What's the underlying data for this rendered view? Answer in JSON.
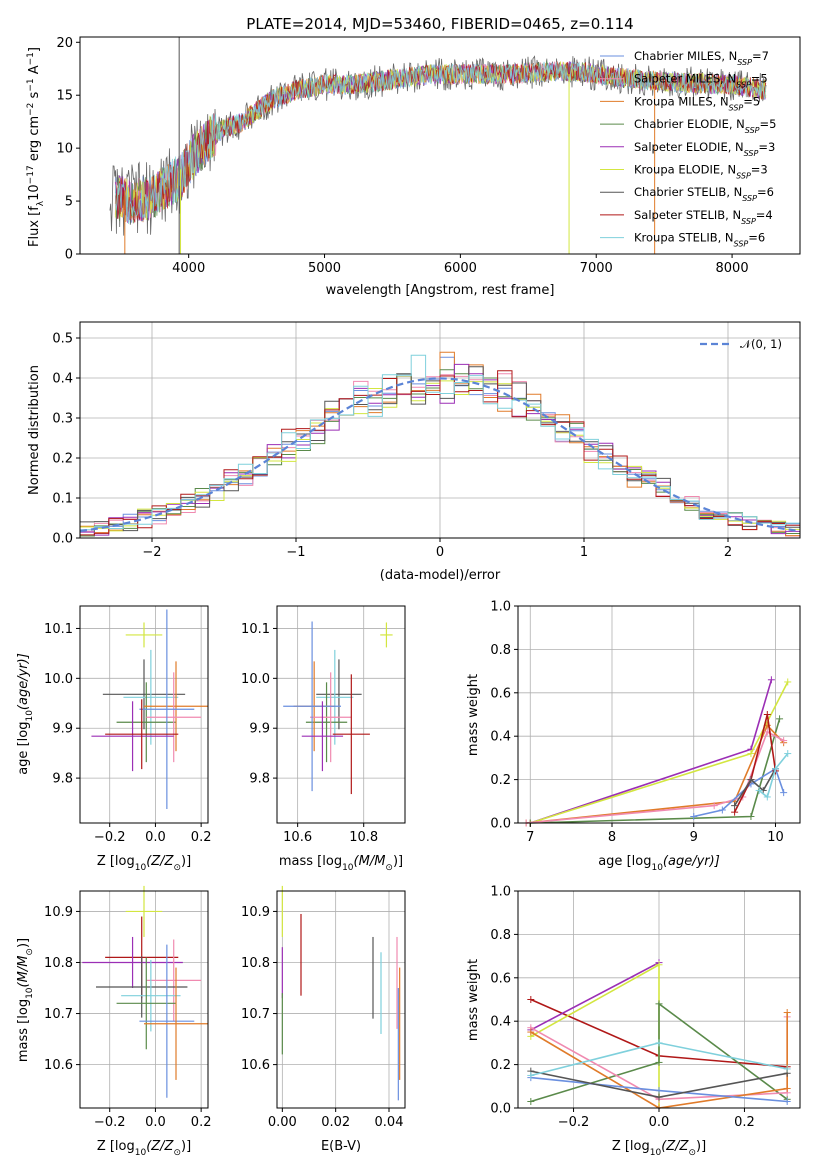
{
  "colors": {
    "Chabrier MILES": "#6a8fdf",
    "Salpeter MILES": "#f08ab0",
    "Kroupa MILES": "#e07b2a",
    "Chabrier ELODIE": "#5a8a4a",
    "Salpeter ELODIE": "#9b2fb5",
    "Kroupa ELODIE": "#d3e640",
    "Chabrier STELIB": "#555555",
    "Salpeter STELIB": "#b01818",
    "Kroupa STELIB": "#7fd0dc"
  },
  "chart_data": [
    {
      "id": "spectrum",
      "type": "line",
      "title": "PLATE=2014, MJD=53460, FIBERID=0465, z=0.114",
      "xlabel": "wavelength [Angstrom, rest frame]",
      "ylabel": "Flux [f$_\\lambda$10$^{-17}$ erg cm$^{-2}$ s$^{-1}$ A$^{-1}$]",
      "ylabel_main": "Flux [f",
      "ylabel_sub": "λ",
      "ylabel_mid": "10",
      "ylabel_sup1": "−17",
      "ylabel_mid2": " erg cm",
      "ylabel_sup2": "−2",
      "ylabel_mid3": " s",
      "ylabel_sup3": "−1",
      "ylabel_mid4": " A",
      "ylabel_sup4": "−1",
      "ylabel_end": "]",
      "xlim": [
        3200,
        8500
      ],
      "ylim": [
        0,
        20.5
      ],
      "xticks": [
        "4000",
        "5000",
        "6000",
        "7000",
        "8000"
      ],
      "xtick_values": [
        4000,
        5000,
        6000,
        7000,
        8000
      ],
      "yticks": [
        "0",
        "5",
        "10",
        "15",
        "20"
      ],
      "ytick_values": [
        0,
        5,
        10,
        15,
        20
      ],
      "legend_position": "right",
      "legend": [
        {
          "name": "Chabrier MILES",
          "nssp": "7"
        },
        {
          "name": "Salpeter MILES",
          "nssp": "5"
        },
        {
          "name": "Kroupa MILES",
          "nssp": "5"
        },
        {
          "name": "Chabrier ELODIE",
          "nssp": "5"
        },
        {
          "name": "Salpeter ELODIE",
          "nssp": "3"
        },
        {
          "name": "Kroupa ELODIE",
          "nssp": "3"
        },
        {
          "name": "Chabrier STELIB",
          "nssp": "6"
        },
        {
          "name": "Salpeter STELIB",
          "nssp": "4"
        },
        {
          "name": "Kroupa STELIB",
          "nssp": "6"
        }
      ],
      "nssp_label": "N",
      "nssp_sub": "SSP",
      "continuum": {
        "x": [
          3420,
          3550,
          3700,
          3850,
          3950,
          4050,
          4200,
          4400,
          4600,
          4800,
          5000,
          5200,
          5500,
          5800,
          6100,
          6400,
          6700,
          6900,
          7100,
          7300,
          7600,
          8000,
          8250
        ],
        "y": [
          5.5,
          5.0,
          5.2,
          6.5,
          7.5,
          9.5,
          11.5,
          12.5,
          14.5,
          15.5,
          16.0,
          16.0,
          16.5,
          17.0,
          17.0,
          17.0,
          17.3,
          17.2,
          16.8,
          16.5,
          16.2,
          16.0,
          15.5
        ]
      },
      "spikes": [
        {
          "x": 3930,
          "y0": 0,
          "y1": 20.5,
          "series": "Chabrier STELIB"
        },
        {
          "x": 3530,
          "y0": 0,
          "y1": 6,
          "series": "Kroupa MILES"
        },
        {
          "x": 3940,
          "y0": 0,
          "y1": 8,
          "series": "Kroupa ELODIE"
        },
        {
          "x": 6800,
          "y0": 0,
          "y1": 17,
          "series": "Kroupa ELODIE"
        },
        {
          "x": 7430,
          "y0": 0,
          "y1": 17,
          "series": "Kroupa MILES"
        }
      ]
    },
    {
      "id": "residuals",
      "type": "line",
      "xlabel": "(data-model)/error",
      "ylabel": "Normed distribution",
      "xlim": [
        -2.5,
        2.5
      ],
      "ylim": [
        0,
        0.54
      ],
      "xticks": [
        "−2",
        "−1",
        "0",
        "1",
        "2"
      ],
      "xtick_values": [
        -2,
        -1,
        0,
        1,
        2
      ],
      "yticks": [
        "0.0",
        "0.1",
        "0.2",
        "0.3",
        "0.4",
        "0.5"
      ],
      "ytick_values": [
        0,
        0.1,
        0.2,
        0.3,
        0.4,
        0.5
      ],
      "legend_label": "𝒩(0, 1)",
      "legend_position": "upper right",
      "gaussian": {
        "mu": 0,
        "sigma": 1,
        "style": "dashed"
      },
      "histogram_bins": 50,
      "histogram_peak": 0.41
    },
    {
      "id": "age_vs_Z",
      "type": "scatter",
      "xlabel_main": "Z [log",
      "xlabel_sub": "10",
      "xlabel_end": "(Z/Z",
      "xlabel_sun": "⊙",
      "xlabel_close": ")]",
      "ylabel_main": "age  [log",
      "ylabel_sub": "10",
      "ylabel_end": "(age/yr)]",
      "xlim": [
        -0.33,
        0.23
      ],
      "ylim": [
        9.71,
        10.145
      ],
      "xticks": [
        "−0.2",
        "0.0",
        "0.2"
      ],
      "xtick_values": [
        -0.2,
        0.0,
        0.2
      ],
      "yticks": [
        "9.8",
        "9.9",
        "10.0",
        "10.1"
      ],
      "ytick_values": [
        9.8,
        9.9,
        10.0,
        10.1
      ],
      "points": [
        {
          "series": "Kroupa ELODIE",
          "x": -0.05,
          "y": 10.087,
          "xerr": 0.08,
          "yerr": 0.025
        },
        {
          "series": "Chabrier STELIB",
          "x": -0.05,
          "y": 9.968,
          "xerr": 0.18,
          "yerr": 0.07
        },
        {
          "series": "Kroupa STELIB",
          "x": -0.02,
          "y": 9.962,
          "xerr": 0.12,
          "yerr": 0.095
        },
        {
          "series": "Chabrier ELODIE",
          "x": -0.04,
          "y": 9.912,
          "xerr": 0.13,
          "yerr": 0.08
        },
        {
          "series": "Kroupa MILES",
          "x": 0.09,
          "y": 9.944,
          "xerr": 0.14,
          "yerr": 0.09
        },
        {
          "series": "Salpeter MILES",
          "x": 0.08,
          "y": 9.922,
          "xerr": 0.12,
          "yerr": 0.09
        },
        {
          "series": "Chabrier MILES",
          "x": 0.05,
          "y": 9.938,
          "xerr": 0.12,
          "yerr": 0.2
        },
        {
          "series": "Salpeter ELODIE",
          "x": -0.1,
          "y": 9.884,
          "xerr": 0.18,
          "yerr": 0.07
        },
        {
          "series": "Salpeter STELIB",
          "x": -0.06,
          "y": 9.888,
          "xerr": 0.16,
          "yerr": 0.07
        }
      ]
    },
    {
      "id": "age_vs_mass",
      "type": "scatter",
      "xlabel_main": "mass [log",
      "xlabel_sub": "10",
      "xlabel_end": "(M/M",
      "xlabel_sun": "⊙",
      "xlabel_close": ")]",
      "xlim": [
        1.65,
        1.96
      ],
      "ylim": [
        9.71,
        10.145
      ],
      "xticks": [
        "10.6",
        "10.8"
      ],
      "xtick_values": [
        1.7,
        1.86
      ],
      "yticks": [
        "9.8",
        "9.9",
        "10.0",
        "10.1"
      ],
      "ytick_values": [
        9.8,
        9.9,
        10.0,
        10.1
      ],
      "points": [
        {
          "series": "Kroupa ELODIE",
          "x": 1.915,
          "y": 10.087,
          "xerr": 0.015,
          "yerr": 0.025
        },
        {
          "series": "Chabrier STELIB",
          "x": 1.8,
          "y": 9.968,
          "xerr": 0.055,
          "yerr": 0.07
        },
        {
          "series": "Kroupa STELIB",
          "x": 1.79,
          "y": 9.962,
          "xerr": 0.045,
          "yerr": 0.095
        },
        {
          "series": "Chabrier ELODIE",
          "x": 1.77,
          "y": 9.912,
          "xerr": 0.05,
          "yerr": 0.08
        },
        {
          "series": "Kroupa MILES",
          "x": 1.74,
          "y": 9.944,
          "xerr": 0.05,
          "yerr": 0.09
        },
        {
          "series": "Salpeter MILES",
          "x": 1.78,
          "y": 9.922,
          "xerr": 0.05,
          "yerr": 0.09
        },
        {
          "series": "Chabrier MILES",
          "x": 1.735,
          "y": 9.944,
          "xerr": 0.07,
          "yerr": 0.17
        },
        {
          "series": "Salpeter ELODIE",
          "x": 1.76,
          "y": 9.884,
          "xerr": 0.05,
          "yerr": 0.07
        },
        {
          "series": "Salpeter STELIB",
          "x": 1.83,
          "y": 9.888,
          "xerr": 0.045,
          "yerr": 0.12
        }
      ]
    },
    {
      "id": "weight_vs_age",
      "type": "line",
      "xlabel_main": "age  [log",
      "xlabel_sub": "10",
      "xlabel_end": "(age/yr)]",
      "ylabel": "mass weight",
      "xlim": [
        6.85,
        10.3
      ],
      "ylim": [
        0,
        1.0
      ],
      "xticks": [
        "7",
        "8",
        "9",
        "10"
      ],
      "xtick_values": [
        7,
        8,
        9,
        10
      ],
      "yticks": [
        "0.0",
        "0.2",
        "0.4",
        "0.6",
        "0.8",
        "1.0"
      ],
      "ytick_values": [
        0,
        0.2,
        0.4,
        0.6,
        0.8,
        1.0
      ],
      "series": [
        {
          "name": "Salpeter ELODIE",
          "x": [
            7.0,
            9.7,
            9.95
          ],
          "y": [
            0.0,
            0.34,
            0.66
          ]
        },
        {
          "name": "Kroupa ELODIE",
          "x": [
            7.0,
            9.7,
            10.15
          ],
          "y": [
            0.0,
            0.32,
            0.65
          ]
        },
        {
          "name": "Chabrier ELODIE",
          "x": [
            7.0,
            9.7,
            10.05
          ],
          "y": [
            0.0,
            0.03,
            0.48
          ]
        },
        {
          "name": "Kroupa MILES",
          "x": [
            6.95,
            9.5,
            9.9,
            10.1
          ],
          "y": [
            0.0,
            0.1,
            0.45,
            0.37
          ]
        },
        {
          "name": "Salpeter MILES",
          "x": [
            6.95,
            9.25,
            9.6,
            9.9,
            10.1
          ],
          "y": [
            0.0,
            0.08,
            0.12,
            0.42,
            0.38
          ]
        },
        {
          "name": "Chabrier MILES",
          "x": [
            9.0,
            9.35,
            9.7,
            10.0,
            10.1
          ],
          "y": [
            0.03,
            0.06,
            0.18,
            0.25,
            0.14
          ]
        },
        {
          "name": "Salpeter STELIB",
          "x": [
            9.5,
            9.7,
            9.9,
            10.0
          ],
          "y": [
            0.05,
            0.2,
            0.5,
            0.24
          ]
        },
        {
          "name": "Chabrier STELIB",
          "x": [
            9.5,
            9.7,
            9.85,
            10.0
          ],
          "y": [
            0.08,
            0.2,
            0.15,
            0.25
          ]
        },
        {
          "name": "Kroupa STELIB",
          "x": [
            9.8,
            9.9,
            10.0,
            10.15
          ],
          "y": [
            0.15,
            0.12,
            0.25,
            0.32
          ]
        }
      ]
    },
    {
      "id": "mass_vs_Z",
      "type": "scatter",
      "xlabel_main": "Z [log",
      "xlabel_sub": "10",
      "xlabel_end": "(Z/Z",
      "xlabel_sun": "⊙",
      "xlabel_close": ")]",
      "ylabel_main": "mass [log",
      "ylabel_sub": "10",
      "ylabel_end": "(M/M",
      "ylabel_sun": "⊙",
      "ylabel_close": ")]",
      "xlim": [
        -0.33,
        0.23
      ],
      "ylim": [
        10.515,
        10.94
      ],
      "xticks": [
        "−0.2",
        "0.0",
        "0.2"
      ],
      "xtick_values": [
        -0.2,
        0.0,
        0.2
      ],
      "yticks": [
        "10.6",
        "10.7",
        "10.8",
        "10.9"
      ],
      "ytick_values": [
        10.6,
        10.7,
        10.8,
        10.9
      ],
      "points": [
        {
          "series": "Kroupa ELODIE",
          "x": -0.05,
          "y": 10.9,
          "xerr": 0.08,
          "yerr": 0.05
        },
        {
          "series": "Salpeter STELIB",
          "x": -0.06,
          "y": 10.81,
          "xerr": 0.16,
          "yerr": 0.08
        },
        {
          "series": "Salpeter ELODIE",
          "x": -0.1,
          "y": 10.8,
          "xerr": 0.22,
          "yerr": 0.05
        },
        {
          "series": "Salpeter MILES",
          "x": 0.08,
          "y": 10.765,
          "xerr": 0.12,
          "yerr": 0.08
        },
        {
          "series": "Chabrier STELIB",
          "x": -0.06,
          "y": 10.752,
          "xerr": 0.2,
          "yerr": 0.06
        },
        {
          "series": "Kroupa STELIB",
          "x": -0.02,
          "y": 10.735,
          "xerr": 0.13,
          "yerr": 0.07
        },
        {
          "series": "Chabrier ELODIE",
          "x": -0.04,
          "y": 10.72,
          "xerr": 0.13,
          "yerr": 0.09
        },
        {
          "series": "Chabrier MILES",
          "x": 0.05,
          "y": 10.685,
          "xerr": 0.12,
          "yerr": 0.15
        },
        {
          "series": "Kroupa MILES",
          "x": 0.09,
          "y": 10.68,
          "xerr": 0.14,
          "yerr": 0.11
        }
      ]
    },
    {
      "id": "mass_vs_ebv",
      "type": "scatter",
      "xlabel": "E(B-V)",
      "xlim": [
        -0.002,
        0.046
      ],
      "ylim": [
        10.515,
        10.94
      ],
      "xticks": [
        "0.00",
        "0.02",
        "0.04"
      ],
      "xtick_values": [
        0,
        0.02,
        0.04
      ],
      "yticks": [
        "10.6",
        "10.7",
        "10.8",
        "10.9"
      ],
      "ytick_values": [
        10.6,
        10.7,
        10.8,
        10.9
      ],
      "points": [
        {
          "series": "Kroupa ELODIE",
          "x": 0.0,
          "y": 10.9,
          "yerr": 0.05
        },
        {
          "series": "Salpeter ELODIE",
          "x": 0.0,
          "y": 10.78,
          "yerr": 0.05
        },
        {
          "series": "Chabrier ELODIE",
          "x": 0.0,
          "y": 10.68,
          "yerr": 0.06
        },
        {
          "series": "Salpeter STELIB",
          "x": 0.007,
          "y": 10.815,
          "yerr": 0.08
        },
        {
          "series": "Chabrier STELIB",
          "x": 0.034,
          "y": 10.77,
          "yerr": 0.08
        },
        {
          "series": "Kroupa STELIB",
          "x": 0.037,
          "y": 10.74,
          "yerr": 0.08
        },
        {
          "series": "Salpeter MILES",
          "x": 0.043,
          "y": 10.76,
          "yerr": 0.09
        },
        {
          "series": "Kroupa MILES",
          "x": 0.044,
          "y": 10.68,
          "yerr": 0.11
        },
        {
          "series": "Chabrier MILES",
          "x": 0.0435,
          "y": 10.64,
          "yerr": 0.11
        }
      ]
    },
    {
      "id": "weight_vs_Z",
      "type": "line",
      "xlabel_main": "Z [log",
      "xlabel_sub": "10",
      "xlabel_end": "(Z/Z",
      "xlabel_sun": "⊙",
      "xlabel_close": ")]",
      "ylabel": "mass weight",
      "xlim": [
        -0.33,
        0.33
      ],
      "ylim": [
        0,
        1.0
      ],
      "xticks": [
        "−0.2",
        "0.0",
        "0.2"
      ],
      "xtick_values": [
        -0.2,
        0.0,
        0.2
      ],
      "yticks": [
        "0.0",
        "0.2",
        "0.4",
        "0.6",
        "0.8",
        "1.0"
      ],
      "ytick_values": [
        0,
        0.2,
        0.4,
        0.6,
        0.8,
        1.0
      ],
      "series": [
        {
          "name": "Salpeter STELIB",
          "x": [
            -0.3,
            0.0,
            0.3
          ],
          "y": [
            0.5,
            0.24,
            0.19
          ]
        },
        {
          "name": "Salpeter ELODIE",
          "x": [
            -0.3,
            0.0
          ],
          "y": [
            0.36,
            0.67
          ]
        },
        {
          "name": "Kroupa ELODIE",
          "x": [
            -0.3,
            0.0,
            0.0
          ],
          "y": [
            0.33,
            0.66,
            0.0
          ]
        },
        {
          "name": "Chabrier ELODIE",
          "x": [
            -0.3,
            0.0,
            0.0,
            0.3
          ],
          "y": [
            0.03,
            0.21,
            0.48,
            0.04
          ]
        },
        {
          "name": "Salpeter MILES",
          "x": [
            -0.3,
            0.0,
            0.3,
            0.3
          ],
          "y": [
            0.37,
            0.04,
            0.07,
            0.42
          ]
        },
        {
          "name": "Kroupa MILES",
          "x": [
            -0.3,
            0.0,
            0.3,
            0.3
          ],
          "y": [
            0.35,
            0.0,
            0.09,
            0.44
          ]
        },
        {
          "name": "Chabrier MILES",
          "x": [
            -0.3,
            0.0,
            0.3
          ],
          "y": [
            0.14,
            0.08,
            0.03
          ]
        },
        {
          "name": "Chabrier STELIB",
          "x": [
            -0.3,
            0.0,
            0.3
          ],
          "y": [
            0.17,
            0.05,
            0.16
          ]
        },
        {
          "name": "Kroupa STELIB",
          "x": [
            -0.3,
            0.0,
            0.3
          ],
          "y": [
            0.15,
            0.3,
            0.18
          ]
        }
      ]
    }
  ]
}
